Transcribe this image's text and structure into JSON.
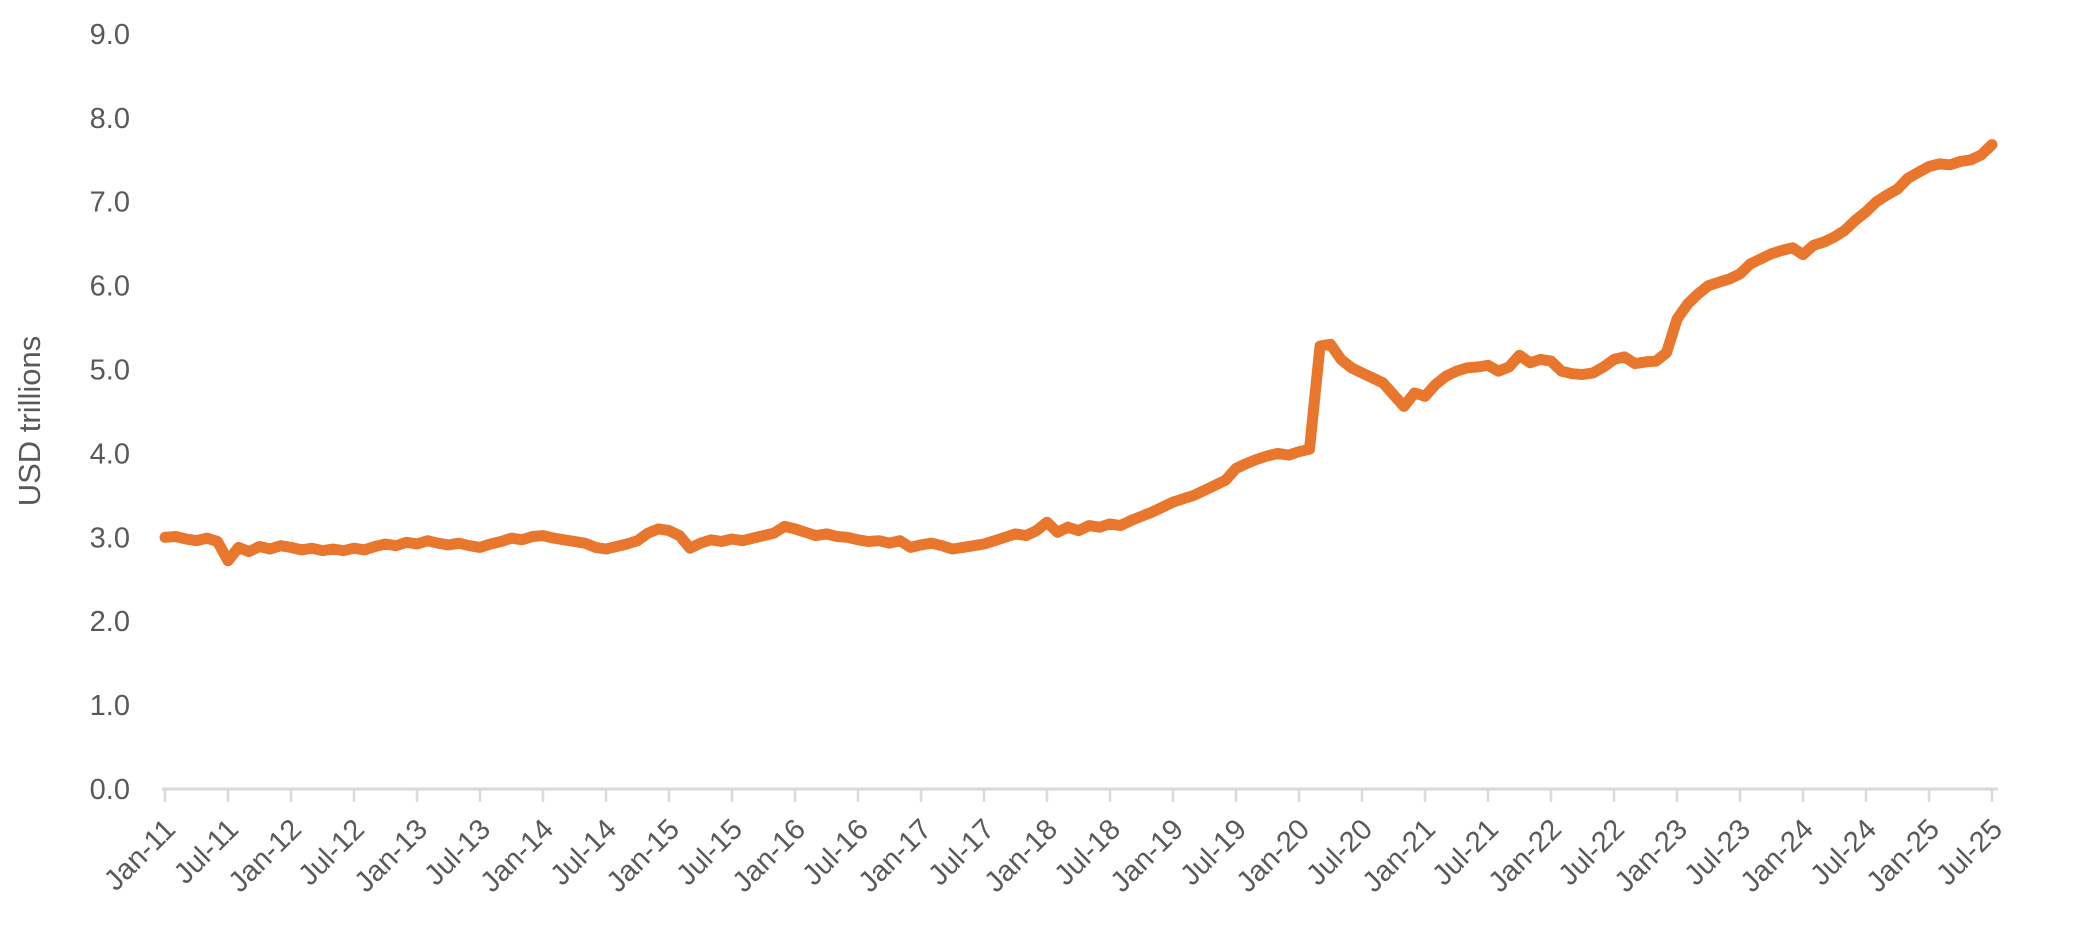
{
  "chart_data": {
    "type": "line",
    "title": "",
    "xlabel": "",
    "ylabel": "USD trillions",
    "ylim": [
      0.0,
      9.0
    ],
    "y_tick_labels": [
      "0.0",
      "1.0",
      "2.0",
      "3.0",
      "4.0",
      "5.0",
      "6.0",
      "7.0",
      "8.0",
      "9.0"
    ],
    "x_tick_labels": [
      "Jan-11",
      "Jul-11",
      "Jan-12",
      "Jul-12",
      "Jan-13",
      "Jul-13",
      "Jan-14",
      "Jul-14",
      "Jan-15",
      "Jul-15",
      "Jan-16",
      "Jul-16",
      "Jan-17",
      "Jul-17",
      "Jan-18",
      "Jul-18",
      "Jan-19",
      "Jul-19",
      "Jan-20",
      "Jul-20",
      "Jan-21",
      "Jul-21",
      "Jan-22",
      "Jul-22",
      "Jan-23",
      "Jul-23",
      "Jan-24",
      "Jul-24",
      "Jan-25",
      "Jul-25"
    ],
    "x_frequency": "monthly",
    "x_start": "Jan-11",
    "x_end": "Jul-25",
    "grid": "off",
    "legend": "none",
    "x_label_rotation_deg": 45,
    "series": [
      {
        "color": "#E8762C",
        "values": [
          3.0,
          3.01,
          2.98,
          2.96,
          2.99,
          2.95,
          2.72,
          2.88,
          2.83,
          2.89,
          2.86,
          2.9,
          2.88,
          2.85,
          2.87,
          2.84,
          2.86,
          2.84,
          2.87,
          2.85,
          2.89,
          2.92,
          2.9,
          2.94,
          2.92,
          2.96,
          2.93,
          2.91,
          2.93,
          2.9,
          2.88,
          2.92,
          2.95,
          2.99,
          2.97,
          3.01,
          3.02,
          2.99,
          2.97,
          2.95,
          2.93,
          2.88,
          2.86,
          2.89,
          2.92,
          2.96,
          3.05,
          3.1,
          3.08,
          3.02,
          2.87,
          2.93,
          2.97,
          2.95,
          2.98,
          2.96,
          2.99,
          3.02,
          3.05,
          3.13,
          3.1,
          3.06,
          3.02,
          3.04,
          3.01,
          3.0,
          2.97,
          2.95,
          2.96,
          2.93,
          2.96,
          2.88,
          2.91,
          2.93,
          2.9,
          2.86,
          2.88,
          2.9,
          2.92,
          2.96,
          3.0,
          3.04,
          3.02,
          3.08,
          3.18,
          3.06,
          3.12,
          3.08,
          3.14,
          3.12,
          3.16,
          3.14,
          3.2,
          3.25,
          3.3,
          3.36,
          3.42,
          3.46,
          3.5,
          3.56,
          3.62,
          3.68,
          3.82,
          3.88,
          3.93,
          3.97,
          4.0,
          3.98,
          4.02,
          4.05,
          5.28,
          5.3,
          5.12,
          5.02,
          4.96,
          4.9,
          4.84,
          4.7,
          4.56,
          4.72,
          4.68,
          4.82,
          4.92,
          4.98,
          5.02,
          5.03,
          5.05,
          4.98,
          5.03,
          5.17,
          5.08,
          5.12,
          5.1,
          4.98,
          4.95,
          4.94,
          4.96,
          5.03,
          5.12,
          5.15,
          5.07,
          5.09,
          5.1,
          5.2,
          5.6,
          5.78,
          5.9,
          6.0,
          6.04,
          6.08,
          6.14,
          6.26,
          6.32,
          6.38,
          6.42,
          6.45,
          6.37,
          6.48,
          6.52,
          6.58,
          6.66,
          6.78,
          6.88,
          7.0,
          7.08,
          7.15,
          7.28,
          7.35,
          7.42,
          7.45,
          7.44,
          7.48,
          7.5,
          7.56,
          7.68
        ]
      }
    ]
  },
  "styles": {
    "line_color": "#E8762C",
    "text_color": "#595959",
    "axis_color": "#D9D9D9",
    "background_color": "#FFFFFF"
  }
}
